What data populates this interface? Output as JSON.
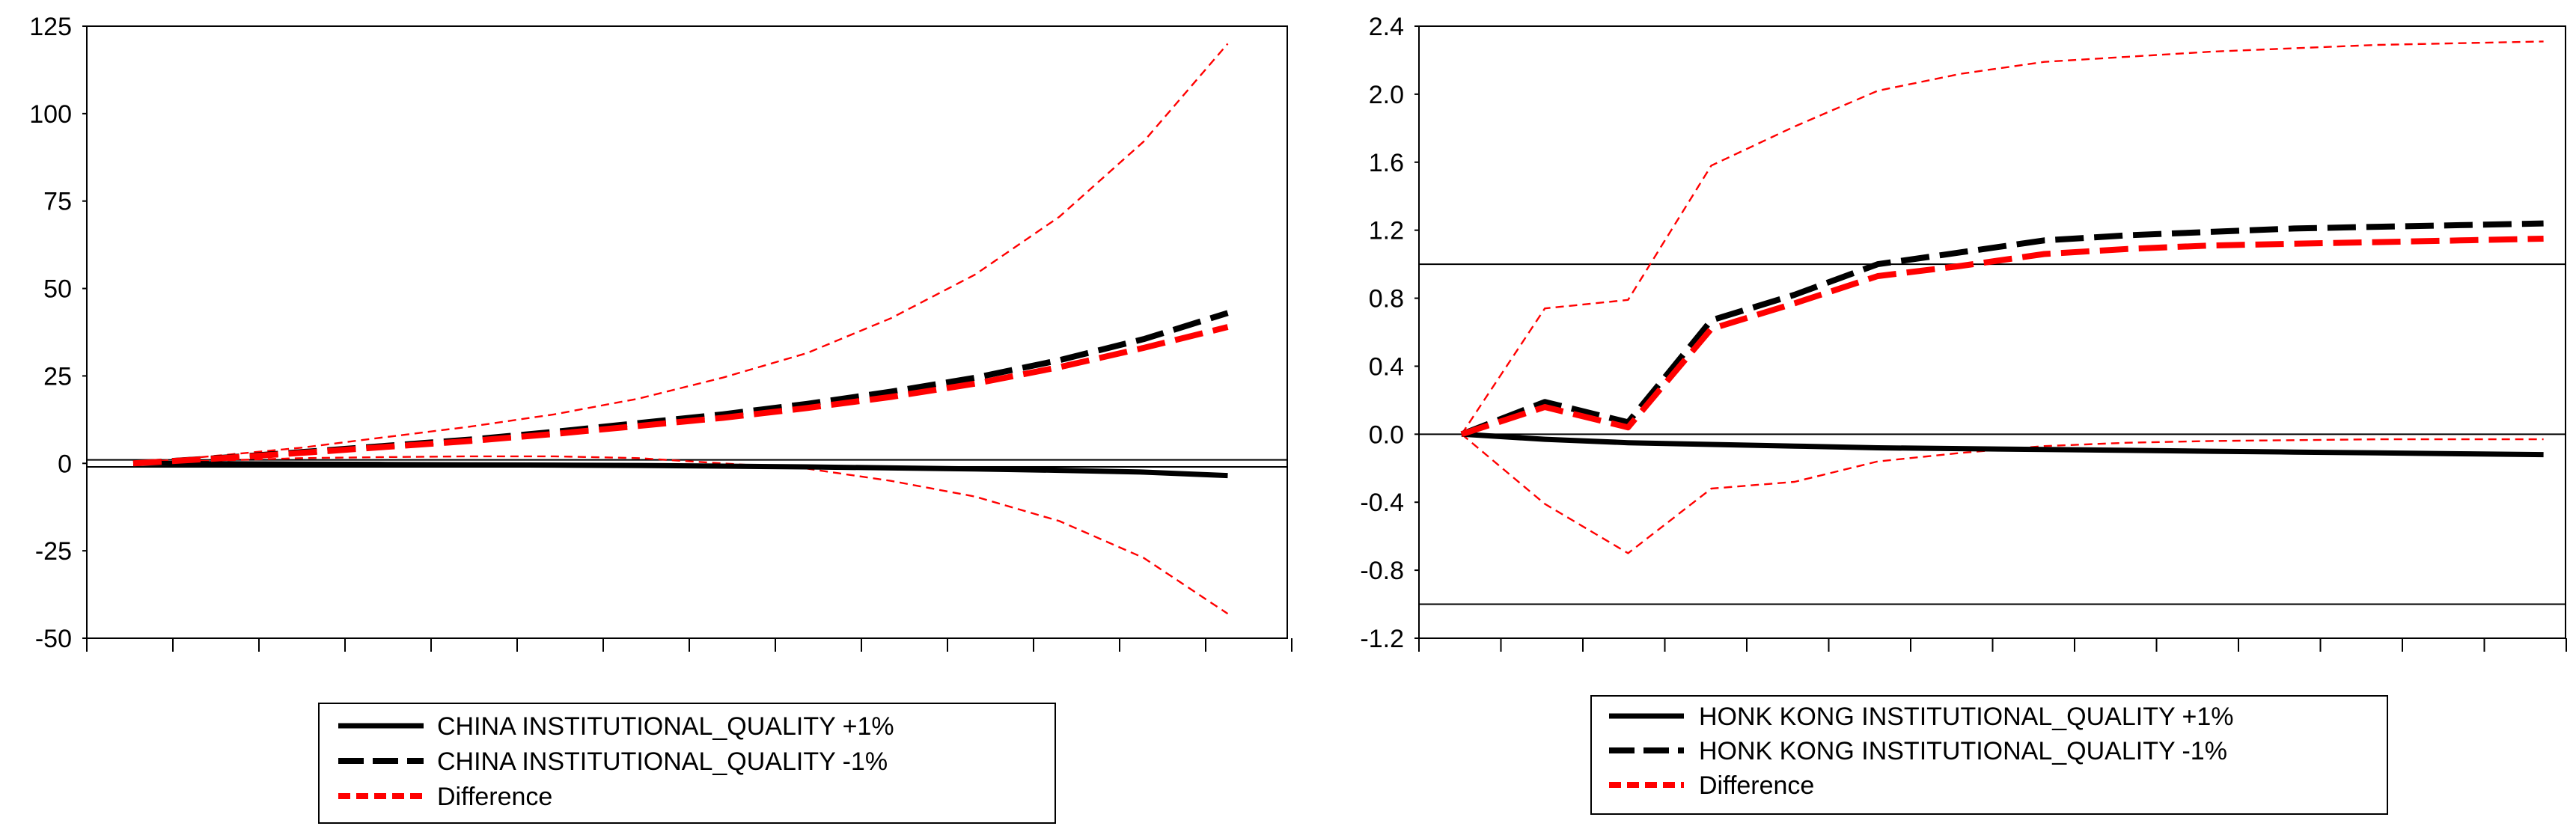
{
  "chart_data": [
    {
      "type": "line",
      "title": "",
      "xlabel": "",
      "ylabel": "",
      "x": [
        1,
        2,
        3,
        4,
        5,
        6,
        7,
        8,
        9,
        10,
        11,
        12,
        13,
        14
      ],
      "ylim": [
        -50,
        125
      ],
      "yticks": [
        125,
        100,
        75,
        50,
        25,
        0,
        -25,
        -50
      ],
      "ytick_labels": [
        "125",
        "100",
        "75",
        "50",
        "25",
        "0",
        "-25",
        "-50"
      ],
      "hlines": [
        1,
        -1
      ],
      "series": [
        {
          "name": "CHINA INSTITUTIONAL_QUALITY +1%",
          "style": "solid",
          "color": "#000000",
          "values": [
            0,
            -0.1,
            -0.2,
            -0.3,
            -0.4,
            -0.5,
            -0.6,
            -0.8,
            -1.0,
            -1.3,
            -1.6,
            -2.0,
            -2.5,
            -3.5
          ]
        },
        {
          "name": "CHINA INSTITUTIONAL_QUALITY -1%",
          "style": "dashed",
          "color": "#000000",
          "values": [
            0,
            1.5,
            3.2,
            5,
            6.8,
            9,
            11.5,
            14,
            17,
            20.5,
            24.5,
            29.5,
            35.5,
            43
          ]
        },
        {
          "name": "Difference",
          "style": "dashed",
          "color": "#ff0000",
          "values": [
            0,
            1.4,
            3.0,
            4.7,
            6.4,
            8.4,
            10.7,
            13,
            15.8,
            19,
            22.8,
            27.5,
            33,
            39
          ]
        },
        {
          "name": "upper band",
          "style": "thin-dashed",
          "color": "#ff0000",
          "legend": false,
          "values": [
            0,
            2.2,
            4.5,
            7.5,
            10.5,
            14,
            18.5,
            24.5,
            31.5,
            41.5,
            54,
            70.5,
            92,
            120
          ]
        },
        {
          "name": "lower band",
          "style": "thin-dashed",
          "color": "#ff0000",
          "legend": false,
          "values": [
            0,
            0.8,
            1.5,
            1.8,
            2,
            2,
            1.5,
            0,
            -1.5,
            -5,
            -9.5,
            -16.5,
            -27,
            -43
          ]
        }
      ],
      "legend": {
        "placement": "bottom-center",
        "entries": [
          "CHINA INSTITUTIONAL_QUALITY +1%",
          "CHINA INSTITUTIONAL_QUALITY -1%",
          "Difference"
        ]
      }
    },
    {
      "type": "line",
      "title": "",
      "xlabel": "",
      "ylabel": "",
      "x": [
        1,
        2,
        3,
        4,
        5,
        6,
        7,
        8,
        9,
        10,
        11,
        12,
        13,
        14
      ],
      "ylim": [
        -1.2,
        2.4
      ],
      "yticks": [
        2.4,
        2.0,
        1.6,
        1.2,
        0.8,
        0.4,
        0.0,
        -0.4,
        -0.8,
        -1.2
      ],
      "ytick_labels": [
        "2.4",
        "2.0",
        "1.6",
        "1.2",
        "0.8",
        "0.4",
        "0.0",
        "-0.4",
        "-0.8",
        "-1.2"
      ],
      "hlines": [
        1.0,
        0.0,
        -1.0
      ],
      "series": [
        {
          "name": "HONK KONG INSTITUTIONAL_QUALITY +1%",
          "style": "solid",
          "color": "#000000",
          "values": [
            0,
            -0.03,
            -0.05,
            -0.06,
            -0.07,
            -0.08,
            -0.085,
            -0.09,
            -0.095,
            -0.1,
            -0.105,
            -0.11,
            -0.115,
            -0.12
          ]
        },
        {
          "name": "HONK KONG INSTITUTIONAL_QUALITY -1%",
          "style": "dashed",
          "color": "#000000",
          "values": [
            0,
            0.19,
            0.07,
            0.67,
            0.82,
            1.0,
            1.07,
            1.14,
            1.17,
            1.19,
            1.21,
            1.22,
            1.23,
            1.24
          ]
        },
        {
          "name": "Difference",
          "style": "dashed",
          "color": "#ff0000",
          "values": [
            0,
            0.16,
            0.04,
            0.62,
            0.77,
            0.93,
            0.99,
            1.06,
            1.09,
            1.11,
            1.12,
            1.13,
            1.14,
            1.15
          ]
        },
        {
          "name": "upper band",
          "style": "thin-dashed",
          "color": "#ff0000",
          "legend": false,
          "values": [
            0,
            0.74,
            0.79,
            1.58,
            1.81,
            2.02,
            2.12,
            2.19,
            2.22,
            2.25,
            2.27,
            2.29,
            2.3,
            2.31
          ]
        },
        {
          "name": "lower band",
          "style": "thin-dashed",
          "color": "#ff0000",
          "legend": false,
          "values": [
            0,
            -0.41,
            -0.7,
            -0.32,
            -0.28,
            -0.16,
            -0.11,
            -0.07,
            -0.05,
            -0.04,
            -0.035,
            -0.03,
            -0.03,
            -0.03
          ]
        }
      ],
      "legend": {
        "placement": "bottom-center",
        "entries": [
          "HONK KONG INSTITUTIONAL_QUALITY +1%",
          "HONK KONG INSTITUTIONAL_QUALITY -1%",
          "Difference"
        ]
      }
    }
  ]
}
